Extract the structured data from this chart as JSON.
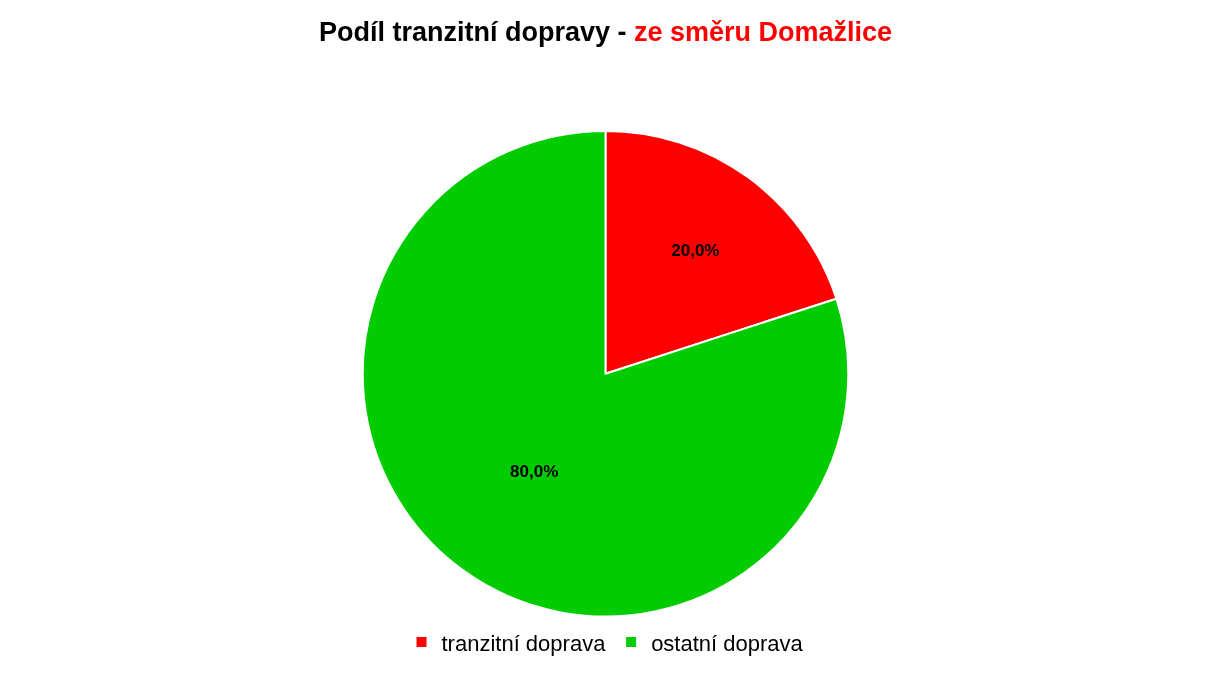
{
  "chart_data": {
    "type": "pie",
    "title": "Podíl tranzitní dopravy -",
    "subtitle": "ze směru Domažlice",
    "categories": [
      "tranzitní doprava",
      "ostatní doprava"
    ],
    "values": [
      20,
      80
    ],
    "colors": [
      "#ff0000",
      "#00cc00"
    ],
    "value_labels": [
      "20,0%",
      "80,0%"
    ],
    "legend": "bottom"
  }
}
